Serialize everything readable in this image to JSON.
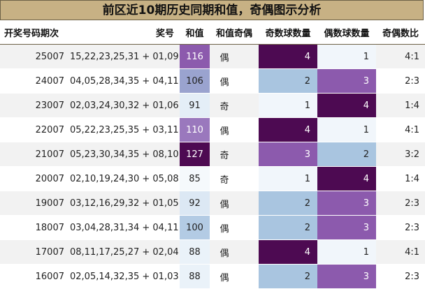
{
  "title": "前区近10期历史同期和值，奇偶图示分析",
  "colors": {
    "dark": "#4d0a52",
    "mid": "#8c5aad",
    "light_purple": "#9aa3cf",
    "light": "#a9c5e0",
    "pale": "#d6e4f1",
    "palest": "#f1f6fb"
  },
  "headers": [
    "开奖号码期次",
    "奖号",
    "和值",
    "和值奇偶",
    "奇数球数量",
    "偶数球数量",
    "奇偶数比"
  ],
  "rows": [
    {
      "period": "25007",
      "numbers": "15,22,23,25,31 + 01,09",
      "sum": "116",
      "sum_parity": "偶",
      "odd": "4",
      "even": "1",
      "ratio": "4:1",
      "sum_color": "#8c5aad",
      "odd_color": "#4d0a52",
      "even_color": "#f1f6fb"
    },
    {
      "period": "24007",
      "numbers": "04,05,28,34,35 + 04,11",
      "sum": "106",
      "sum_parity": "偶",
      "odd": "2",
      "even": "3",
      "ratio": "2:3",
      "sum_color": "#9aa3cf",
      "odd_color": "#a9c5e0",
      "even_color": "#8c5aad"
    },
    {
      "period": "23007",
      "numbers": "02,03,24,30,32 + 01,06",
      "sum": "91",
      "sum_parity": "奇",
      "odd": "1",
      "even": "4",
      "ratio": "1:4",
      "sum_color": "#e4eef7",
      "odd_color": "#f1f6fb",
      "even_color": "#4d0a52"
    },
    {
      "period": "22007",
      "numbers": "05,22,23,25,35 + 03,11",
      "sum": "110",
      "sum_parity": "偶",
      "odd": "4",
      "even": "1",
      "ratio": "4:1",
      "sum_color": "#9a78bd",
      "odd_color": "#4d0a52",
      "even_color": "#f1f6fb"
    },
    {
      "period": "21007",
      "numbers": "05,23,30,34,35 + 08,10",
      "sum": "127",
      "sum_parity": "奇",
      "odd": "3",
      "even": "2",
      "ratio": "3:2",
      "sum_color": "#4d0a52",
      "odd_color": "#8c5aad",
      "even_color": "#a9c5e0"
    },
    {
      "period": "20007",
      "numbers": "02,10,19,24,30 + 05,08",
      "sum": "85",
      "sum_parity": "奇",
      "odd": "1",
      "even": "4",
      "ratio": "1:4",
      "sum_color": "#f5f9fc",
      "odd_color": "#f1f6fb",
      "even_color": "#4d0a52"
    },
    {
      "period": "19007",
      "numbers": "03,12,16,29,32 + 01,05",
      "sum": "92",
      "sum_parity": "偶",
      "odd": "2",
      "even": "3",
      "ratio": "2:3",
      "sum_color": "#dce8f4",
      "odd_color": "#a9c5e0",
      "even_color": "#8c5aad"
    },
    {
      "period": "18007",
      "numbers": "03,04,28,31,34 + 04,11",
      "sum": "100",
      "sum_parity": "偶",
      "odd": "2",
      "even": "3",
      "ratio": "2:3",
      "sum_color": "#b3cbe4",
      "odd_color": "#a9c5e0",
      "even_color": "#8c5aad"
    },
    {
      "period": "17007",
      "numbers": "08,11,17,25,27 + 02,04",
      "sum": "88",
      "sum_parity": "偶",
      "odd": "4",
      "even": "1",
      "ratio": "4:1",
      "sum_color": "#eaf2f9",
      "odd_color": "#4d0a52",
      "even_color": "#f1f6fb"
    },
    {
      "period": "16007",
      "numbers": "02,05,14,32,35 + 01,03",
      "sum": "88",
      "sum_parity": "偶",
      "odd": "2",
      "even": "3",
      "ratio": "2:3",
      "sum_color": "#eaf2f9",
      "odd_color": "#a9c5e0",
      "even_color": "#8c5aad"
    }
  ]
}
